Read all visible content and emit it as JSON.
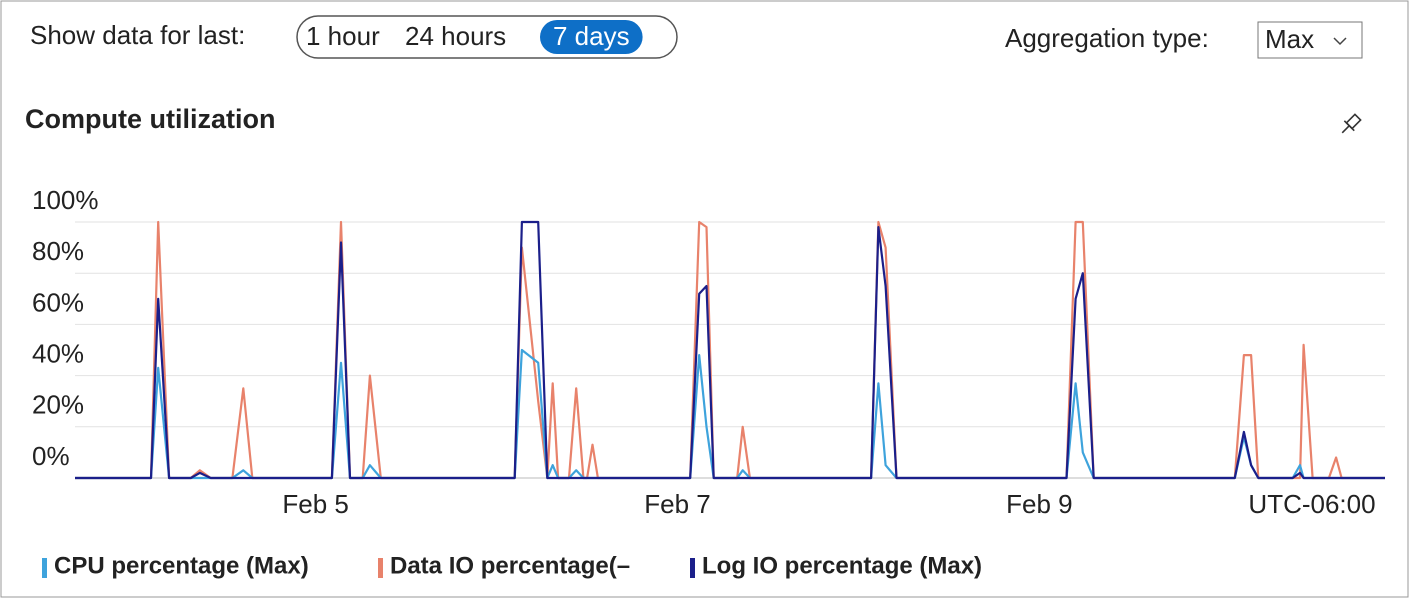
{
  "controls": {
    "label": "Show data for last:",
    "options": [
      "1 hour",
      "24 hours",
      "7 days"
    ],
    "selected": 2,
    "aggregation_label": "Aggregation type:",
    "aggregation_value": "Max"
  },
  "chart_data": {
    "type": "line",
    "title": "Compute utilization",
    "timezone": "UTC-06:00",
    "x": [
      3.67,
      4.09,
      4.13,
      4.19,
      4.31,
      4.36,
      4.42,
      4.54,
      4.6,
      4.65,
      5.09,
      5.14,
      5.19,
      5.26,
      5.3,
      5.36,
      6.1,
      6.14,
      6.23,
      6.28,
      6.31,
      6.34,
      6.4,
      6.44,
      6.48,
      6.5,
      6.53,
      6.56,
      7.07,
      7.12,
      7.16,
      7.2,
      7.33,
      7.36,
      7.4,
      8.07,
      8.11,
      8.15,
      8.21,
      9.15,
      9.2,
      9.24,
      9.3,
      10.08,
      10.13,
      10.17,
      10.21,
      10.4,
      10.44,
      10.46,
      10.51,
      10.6,
      10.64,
      10.67,
      10.91
    ],
    "xlim": [
      3.67,
      10.91
    ],
    "xticks": [
      {
        "value": 5,
        "label": "Feb 5"
      },
      {
        "value": 7,
        "label": "Feb 7"
      },
      {
        "value": 9,
        "label": "Feb 9"
      }
    ],
    "ylim": [
      0,
      100
    ],
    "yticks": [
      {
        "value": 0,
        "label": "0%"
      },
      {
        "value": 20,
        "label": "20%"
      },
      {
        "value": 40,
        "label": "40%"
      },
      {
        "value": 60,
        "label": "60%"
      },
      {
        "value": 80,
        "label": "80%"
      },
      {
        "value": 100,
        "label": "100%"
      }
    ],
    "grid": true,
    "series": [
      {
        "name": "CPU percentage (Max)",
        "color": "#3ea3dc",
        "values": [
          0,
          0,
          43,
          0,
          0,
          0,
          0,
          0,
          3,
          0,
          0,
          45,
          0,
          0,
          5,
          0,
          0,
          50,
          45,
          0,
          5,
          0,
          0,
          3,
          0,
          0,
          0,
          0,
          0,
          48,
          20,
          0,
          0,
          3,
          0,
          0,
          37,
          5,
          0,
          0,
          37,
          10,
          0,
          0,
          16,
          5,
          0,
          0,
          5,
          0,
          0,
          0,
          0,
          0,
          0
        ]
      },
      {
        "name": "Data IO percentage(–",
        "color": "#e8826b",
        "values": [
          0,
          0,
          100,
          0,
          0,
          3,
          0,
          0,
          35,
          0,
          0,
          100,
          0,
          0,
          40,
          0,
          0,
          90,
          30,
          0,
          37,
          0,
          0,
          35,
          0,
          0,
          13,
          0,
          0,
          100,
          98,
          0,
          0,
          20,
          0,
          0,
          100,
          90,
          0,
          0,
          100,
          100,
          0,
          0,
          48,
          48,
          0,
          0,
          0,
          52,
          0,
          0,
          8,
          0,
          0
        ]
      },
      {
        "name": "Log IO percentage (Max)",
        "color": "#1b1f8a",
        "values": [
          0,
          0,
          70,
          0,
          0,
          2,
          0,
          0,
          0,
          0,
          0,
          92,
          0,
          0,
          0,
          0,
          0,
          100,
          100,
          0,
          0,
          0,
          0,
          0,
          0,
          0,
          0,
          0,
          0,
          72,
          75,
          0,
          0,
          0,
          0,
          0,
          98,
          75,
          0,
          0,
          70,
          80,
          0,
          0,
          18,
          5,
          0,
          0,
          2,
          0,
          0,
          0,
          0,
          0,
          0
        ]
      }
    ]
  }
}
